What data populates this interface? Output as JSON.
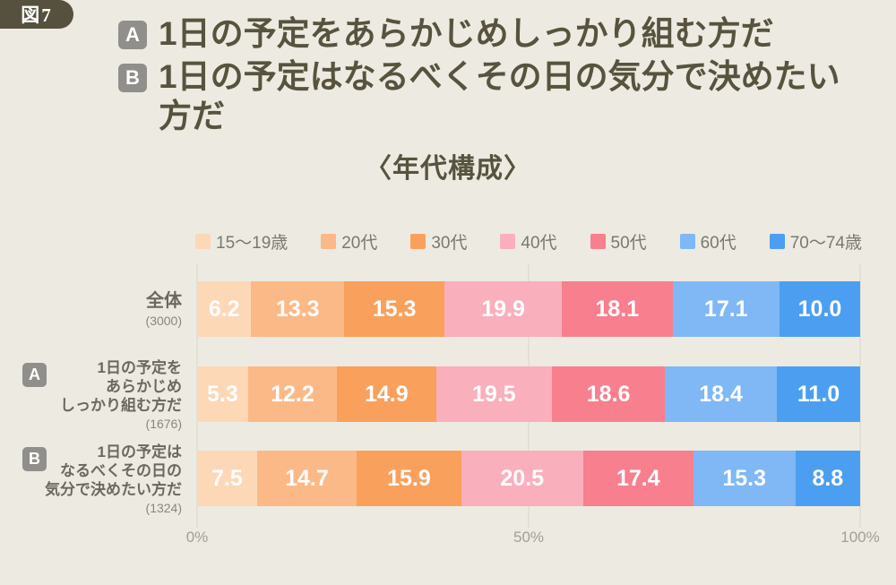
{
  "figure_label": "図7",
  "header": {
    "items": [
      {
        "badge": "A",
        "text": "1日の予定をあらかじめしっかり組む方だ"
      },
      {
        "badge": "B",
        "text": "1日の予定はなるべくその日の気分で決めたい方だ"
      }
    ]
  },
  "chart_title": "〈年代構成〉",
  "chart_data": {
    "type": "bar",
    "variant": "horizontal-stacked-100",
    "unit": "%",
    "xlim": [
      0,
      100
    ],
    "x_ticks": [
      "0%",
      "50%",
      "100%"
    ],
    "legend_position": "top",
    "grid": "vertical-lines-at-0-50-100",
    "series": [
      {
        "name": "15〜19歳",
        "color": "#FCD8B7"
      },
      {
        "name": "20代",
        "color": "#FBB987"
      },
      {
        "name": "30代",
        "color": "#F9A05C"
      },
      {
        "name": "40代",
        "color": "#F9AFBC"
      },
      {
        "name": "50代",
        "color": "#F77F8E"
      },
      {
        "name": "60代",
        "color": "#7FB8F5"
      },
      {
        "name": "70〜74歳",
        "color": "#4C9FF0"
      }
    ],
    "rows": [
      {
        "badge": null,
        "label_lines": [
          "全体"
        ],
        "n_label": "(3000)",
        "values": [
          6.2,
          13.3,
          15.3,
          19.9,
          18.1,
          17.1,
          10.0
        ]
      },
      {
        "badge": "A",
        "label_lines": [
          "1日の予定を",
          "あらかじめ",
          "しっかり組む方だ"
        ],
        "n_label": "(1676)",
        "values": [
          5.3,
          12.2,
          14.9,
          19.5,
          18.6,
          18.4,
          11.0
        ]
      },
      {
        "badge": "B",
        "label_lines": [
          "1日の予定は",
          "なるべくその日の",
          "気分で決めたい方だ"
        ],
        "n_label": "(1324)",
        "values": [
          7.5,
          14.7,
          15.9,
          20.5,
          17.4,
          15.3,
          8.8
        ]
      }
    ]
  },
  "colors": {
    "background": "#EDEAE1",
    "heading_text": "#57533E",
    "option_badge_bg": "#908F8B",
    "figure_badge_bg": "#55513E",
    "row_label_text": "#6B6860",
    "sample_size_text": "#8A877E",
    "legend_text": "#7B786E",
    "axis_text": "#A29F95",
    "gridline": "#D9D6CB",
    "value_text": "#FFFFFF"
  }
}
